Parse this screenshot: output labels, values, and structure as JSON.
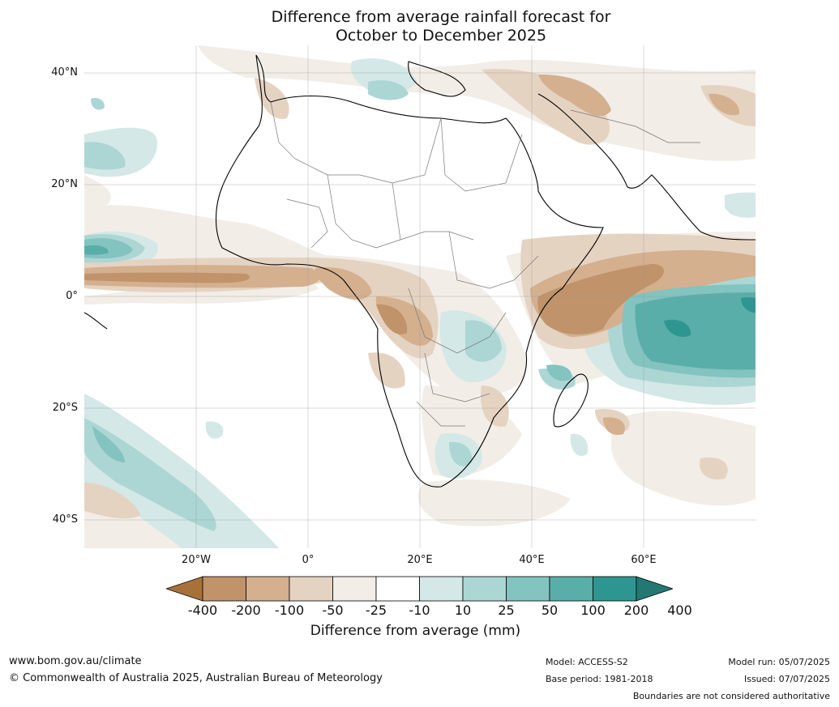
{
  "title_line1": "Difference from average rainfall forecast for",
  "title_line2": "October to December 2025",
  "lat_labels": [
    "40°N",
    "20°N",
    "0°",
    "20°S",
    "40°S"
  ],
  "lon_labels": [
    "20°W",
    "0°",
    "20°E",
    "40°E",
    "60°E"
  ],
  "colorbar": {
    "label": "Difference from average (mm)",
    "ticks": [
      "-400",
      "-200",
      "-100",
      "-50",
      "-25",
      "-10",
      "10",
      "25",
      "50",
      "100",
      "200",
      "400"
    ],
    "colors": [
      "#a9713a",
      "#c0936a",
      "#d4b08f",
      "#e5d3c2",
      "#f2ede7",
      "#ffffff",
      "#d3e8e7",
      "#acd6d4",
      "#83c3c0",
      "#5aaea9",
      "#2e9690",
      "#237873"
    ]
  },
  "footer": {
    "url": "www.bom.gov.au/climate",
    "copyright": "© Commonwealth of Australia 2025, Australian Bureau of Meteorology",
    "model": "Model: ACCESS-S2",
    "base_period": "Base period: 1981-2018",
    "model_run": "Model run: 05/07/2025",
    "issued": "Issued: 07/07/2025",
    "disclaimer": "Boundaries are not considered authoritative"
  }
}
